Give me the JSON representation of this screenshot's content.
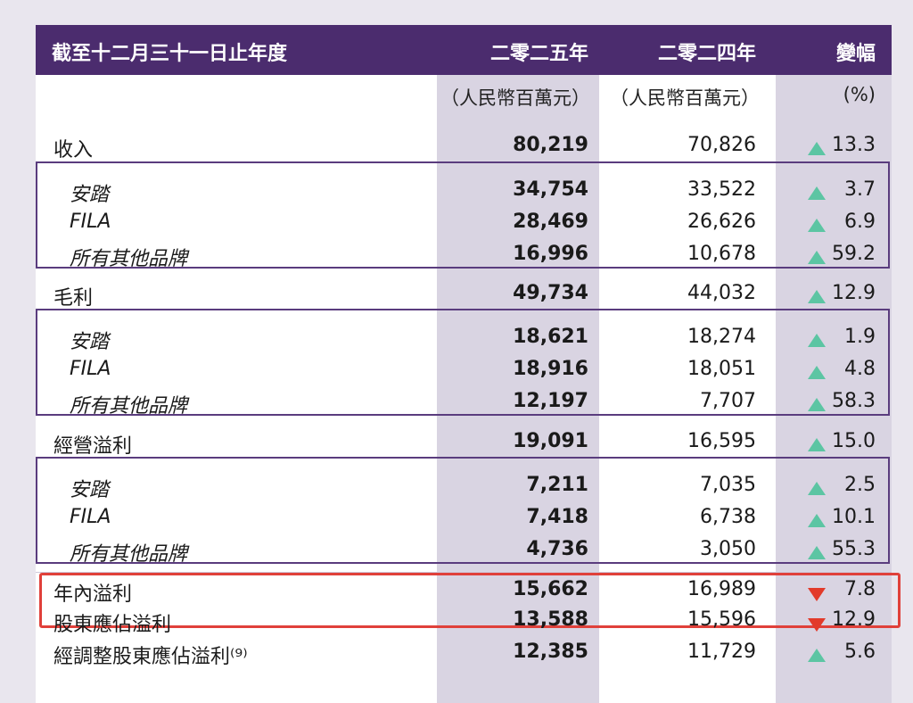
{
  "header": {
    "title": "截至十二月三十一日止年度",
    "col_2025": "二零二五年",
    "col_2024": "二零二四年",
    "col_change": "變幅"
  },
  "units": {
    "col_2025": "（人民幣百萬元）",
    "col_2024": "（人民幣百萬元）",
    "col_change": "(%)"
  },
  "rows": [
    {
      "label": "收入",
      "v2025": "80,219",
      "v2024": "70,826",
      "dir": "up",
      "change": "13.3"
    },
    {
      "label": "安踏",
      "v2025": "34,754",
      "v2024": "33,522",
      "dir": "up",
      "change": "3.7"
    },
    {
      "label": "FILA",
      "v2025": "28,469",
      "v2024": "26,626",
      "dir": "up",
      "change": "6.9"
    },
    {
      "label": "所有其他品牌",
      "v2025": "16,996",
      "v2024": "10,678",
      "dir": "up",
      "change": "59.2"
    },
    {
      "label": "毛利",
      "v2025": "49,734",
      "v2024": "44,032",
      "dir": "up",
      "change": "12.9"
    },
    {
      "label": "安踏",
      "v2025": "18,621",
      "v2024": "18,274",
      "dir": "up",
      "change": "1.9"
    },
    {
      "label": "FILA",
      "v2025": "18,916",
      "v2024": "18,051",
      "dir": "up",
      "change": "4.8"
    },
    {
      "label": "所有其他品牌",
      "v2025": "12,197",
      "v2024": "7,707",
      "dir": "up",
      "change": "58.3"
    },
    {
      "label": "經營溢利",
      "v2025": "19,091",
      "v2024": "16,595",
      "dir": "up",
      "change": "15.0"
    },
    {
      "label": "安踏",
      "v2025": "7,211",
      "v2024": "7,035",
      "dir": "up",
      "change": "2.5"
    },
    {
      "label": "FILA",
      "v2025": "7,418",
      "v2024": "6,738",
      "dir": "up",
      "change": "10.1"
    },
    {
      "label": "所有其他品牌",
      "v2025": "4,736",
      "v2024": "3,050",
      "dir": "up",
      "change": "55.3"
    },
    {
      "label": "年內溢利",
      "v2025": "15,662",
      "v2024": "16,989",
      "dir": "down",
      "change": "7.8"
    },
    {
      "label": "股東應佔溢利",
      "v2025": "13,588",
      "v2024": "15,596",
      "dir": "down",
      "change": "12.9"
    },
    {
      "label": "經調整股東應佔溢利⁽⁹⁾",
      "v2025": "12,385",
      "v2024": "11,729",
      "dir": "up",
      "change": "5.6"
    }
  ]
}
